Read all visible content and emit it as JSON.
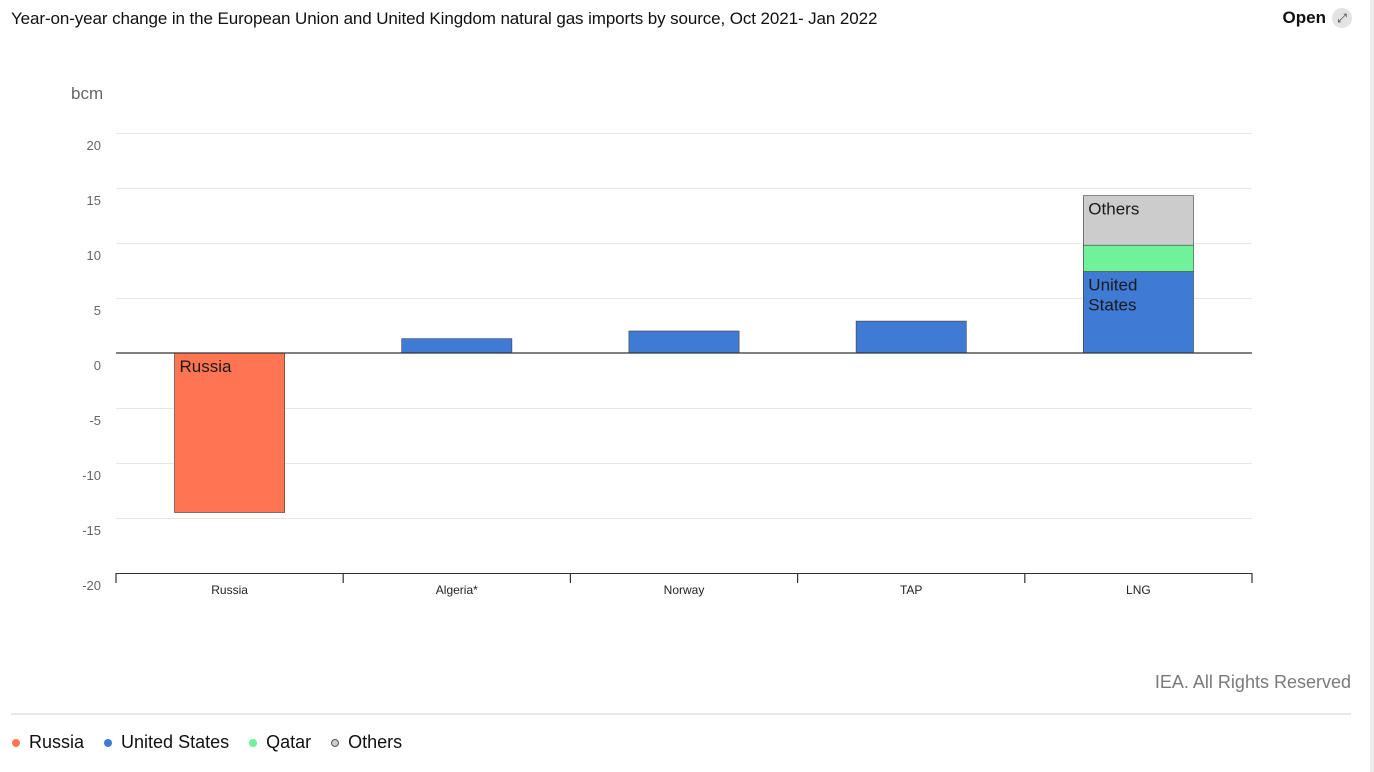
{
  "header": {
    "title": "Year-on-year change in the European Union and United Kingdom natural gas imports by source, Oct 2021- Jan 2022",
    "open_label": "Open",
    "open_icon": "expand-arrows-icon"
  },
  "chart_data": {
    "type": "bar",
    "stacked": true,
    "title": "Year-on-year change in the European Union and United Kingdom natural gas imports by source, Oct 2021- Jan 2022",
    "unit_label": "bcm",
    "ylabel": "bcm",
    "xlabel": "",
    "ylim": [
      -20,
      20
    ],
    "yticks": [
      20,
      15,
      10,
      5,
      0,
      -5,
      -10,
      -15,
      -20
    ],
    "grid": true,
    "legend_position": "bottom-left",
    "categories": [
      "Russia",
      "Algeria*",
      "Norway",
      "TAP",
      "LNG"
    ],
    "series": [
      {
        "name": "Russia",
        "color": "#ff7552",
        "values": [
          -14.5,
          0,
          0,
          0,
          0
        ],
        "label": "Russia",
        "label_category": "Russia"
      },
      {
        "name": "United States",
        "color": "#3f7bd4",
        "values": [
          0,
          1.3,
          2.0,
          2.9,
          7.4
        ],
        "label": "United States",
        "label_category": "LNG"
      },
      {
        "name": "Qatar",
        "color": "#6ff29a",
        "values": [
          0,
          0,
          0,
          0,
          2.4
        ],
        "label": "",
        "label_category": ""
      },
      {
        "name": "Others",
        "color": "#cccccc",
        "values": [
          0,
          0,
          0,
          0,
          4.5
        ],
        "label": "Others",
        "label_category": "LNG"
      }
    ]
  },
  "credits": "IEA. All Rights Reserved",
  "legend": [
    {
      "name": "Russia",
      "color": "#ff7552"
    },
    {
      "name": "United States",
      "color": "#3f7bd4"
    },
    {
      "name": "Qatar",
      "color": "#6ff29a"
    },
    {
      "name": "Others",
      "color": "#cccccc"
    }
  ]
}
